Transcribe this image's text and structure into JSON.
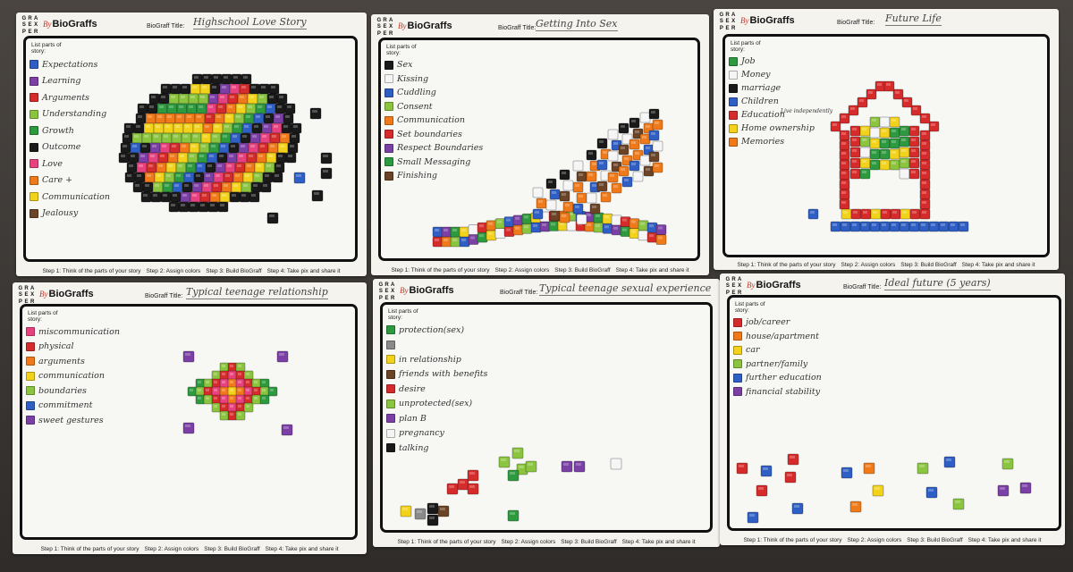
{
  "logo_letters": [
    "G",
    "R",
    "A",
    "S",
    "E",
    "X",
    "P",
    "E",
    "R"
  ],
  "brand": {
    "by": "By",
    "name": "BioGraffs"
  },
  "title_label": "BioGraff Title:",
  "list_label": "List parts of story:",
  "steps": [
    "Step 1: Think of the parts of your story",
    "Step 2: Assign colors",
    "Step 3: Build BioGraff",
    "Step 4: Take pix and share it"
  ],
  "colors": {
    "red": "#d62b2b",
    "orange": "#f07a1a",
    "yellow": "#f2d21b",
    "lime": "#8bc53f",
    "green": "#2e9a3f",
    "blue": "#2f5fc4",
    "purple": "#7b3fa6",
    "pink": "#e7427f",
    "brown": "#6b4428",
    "black": "#1a1a1a",
    "white": "#f5f5f5",
    "gray": "#8a8a8a"
  },
  "cards": [
    {
      "title": "Highschool Love Story",
      "items": [
        {
          "label": "Expectations",
          "color": "blue"
        },
        {
          "label": "Learning",
          "color": "purple"
        },
        {
          "label": "Arguments",
          "color": "red"
        },
        {
          "label": "Understanding",
          "color": "lime"
        },
        {
          "label": "Growth",
          "color": "green"
        },
        {
          "label": "Outcome",
          "color": "black"
        },
        {
          "label": "Love",
          "color": "pink"
        },
        {
          "label": "Care +",
          "color": "orange"
        },
        {
          "label": "Communication",
          "color": "yellow"
        },
        {
          "label": "Jealousy",
          "color": "brown"
        }
      ]
    },
    {
      "title": "Getting Into Sex",
      "items": [
        {
          "label": "Sex",
          "color": "black"
        },
        {
          "label": "Kissing",
          "color": "white"
        },
        {
          "label": "Cuddling",
          "color": "blue"
        },
        {
          "label": "Consent",
          "color": "lime"
        },
        {
          "label": "Communication",
          "color": "orange"
        },
        {
          "label": "Set boundaries",
          "color": "red"
        },
        {
          "label": "Respect Boundaries",
          "color": "purple"
        },
        {
          "label": "Small Messaging",
          "color": "green"
        },
        {
          "label": "Finishing",
          "color": "brown"
        }
      ]
    },
    {
      "title": "Future Life",
      "items": [
        {
          "label": "Job",
          "color": "green"
        },
        {
          "label": "Money",
          "color": "white"
        },
        {
          "label": "marriage",
          "color": "black"
        },
        {
          "label": "Children",
          "color": "blue"
        },
        {
          "label": "Education",
          "color": "red"
        },
        {
          "label": "Home ownership",
          "color": "yellow"
        },
        {
          "label": "Memories",
          "color": "orange"
        }
      ],
      "note": "Live independently"
    },
    {
      "title": "Typical teenage relationship",
      "items": [
        {
          "label": "miscommunication",
          "color": "pink"
        },
        {
          "label": "physical",
          "color": "red"
        },
        {
          "label": "arguments",
          "color": "orange"
        },
        {
          "label": "communication",
          "color": "yellow"
        },
        {
          "label": "boundaries",
          "color": "lime"
        },
        {
          "label": "commitment",
          "color": "blue"
        },
        {
          "label": "sweet gestures",
          "color": "purple"
        }
      ]
    },
    {
      "title": "Typical teenage sexual experience",
      "items": [
        {
          "label": "protection(sex)",
          "color": "green"
        },
        {
          "label": "",
          "color": "gray"
        },
        {
          "label": "in relationship",
          "color": "yellow"
        },
        {
          "label": "friends with benefits",
          "color": "brown"
        },
        {
          "label": "desire",
          "color": "red"
        },
        {
          "label": "unprotected(sex)",
          "color": "lime"
        },
        {
          "label": "plan B",
          "color": "purple"
        },
        {
          "label": "pregnancy",
          "color": "white"
        },
        {
          "label": "talking",
          "color": "black"
        }
      ]
    },
    {
      "title": "Ideal future (5 years)",
      "items": [
        {
          "label": "job/career",
          "color": "red"
        },
        {
          "label": "house/apartment",
          "color": "orange"
        },
        {
          "label": "car",
          "color": "yellow"
        },
        {
          "label": "partner/family",
          "color": "lime"
        },
        {
          "label": "further education",
          "color": "blue"
        },
        {
          "label": "financial stability",
          "color": "purple"
        }
      ]
    }
  ]
}
